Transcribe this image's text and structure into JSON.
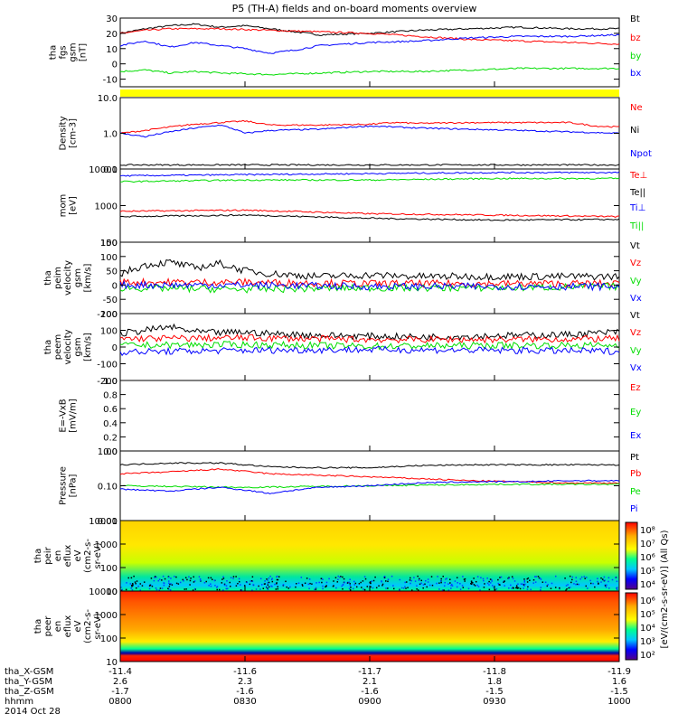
{
  "title": "P5 (TH-A) fields and on-board moments overview",
  "colors": {
    "black": "#000000",
    "red": "#ff0000",
    "green": "#00dd00",
    "blue": "#0000ff",
    "yellow": "#ffff00"
  },
  "chart_data": [
    {
      "id": "fgs",
      "type": "line",
      "ylabel": [
        "tha",
        "fgs",
        "gsm",
        "[nT]"
      ],
      "ylim": [
        -15,
        30
      ],
      "yticks": [
        "30",
        "20",
        "10",
        "0",
        "-10"
      ],
      "ytick_values": [
        30,
        20,
        10,
        0,
        -10
      ],
      "legend": [
        {
          "name": "Bt",
          "color": "#000000"
        },
        {
          "name": "bz",
          "color": "#ff0000"
        },
        {
          "name": "by",
          "color": "#00dd00"
        },
        {
          "name": "bx",
          "color": "#0000ff"
        }
      ],
      "series": [
        {
          "name": "Bt",
          "color": "#000000",
          "x": [
            0,
            0.05,
            0.1,
            0.15,
            0.2,
            0.25,
            0.3,
            0.35,
            0.4,
            0.5,
            0.6,
            0.7,
            0.8,
            0.9,
            1.0
          ],
          "y": [
            20,
            23,
            25,
            26,
            24,
            25,
            23,
            21,
            19,
            20,
            22,
            23,
            24,
            23,
            23
          ]
        },
        {
          "name": "bz",
          "color": "#ff0000",
          "x": [
            0,
            0.05,
            0.1,
            0.2,
            0.3,
            0.4,
            0.5,
            0.6,
            0.7,
            0.8,
            0.9,
            1.0
          ],
          "y": [
            20,
            22,
            23,
            23,
            22,
            21,
            20,
            18,
            16,
            15,
            14,
            13
          ]
        },
        {
          "name": "by",
          "color": "#00dd00",
          "x": [
            0,
            0.05,
            0.1,
            0.15,
            0.2,
            0.3,
            0.4,
            0.5,
            0.6,
            0.7,
            0.8,
            0.9,
            1.0
          ],
          "y": [
            -5,
            -4,
            -6,
            -5,
            -6,
            -7,
            -6,
            -5,
            -5,
            -4,
            -3,
            -3,
            -3
          ]
        },
        {
          "name": "bx",
          "color": "#0000ff",
          "x": [
            0,
            0.05,
            0.1,
            0.15,
            0.2,
            0.25,
            0.3,
            0.35,
            0.4,
            0.5,
            0.6,
            0.7,
            0.8,
            0.9,
            1.0
          ],
          "y": [
            12,
            15,
            11,
            14,
            12,
            10,
            7,
            9,
            12,
            14,
            15,
            17,
            18,
            18,
            19
          ]
        }
      ]
    },
    {
      "id": "density",
      "type": "line",
      "scale": "log",
      "ylabel": [
        "Density",
        "[cm-3]"
      ],
      "ylim": [
        0.1,
        10
      ],
      "yticks": [
        "10.0",
        "1.0",
        "0.1"
      ],
      "ytick_values": [
        10,
        1,
        0.1
      ],
      "legend": [
        {
          "name": "Ne",
          "color": "#ff0000"
        },
        {
          "name": "Ni",
          "color": "#000000"
        },
        {
          "name": "Npot",
          "color": "#0000ff"
        }
      ],
      "series": [
        {
          "name": "Ne",
          "color": "#ff0000",
          "x": [
            0,
            0.05,
            0.1,
            0.15,
            0.2,
            0.25,
            0.3,
            0.4,
            0.5,
            0.55,
            0.6,
            0.7,
            0.8,
            0.9,
            0.95,
            1.0
          ],
          "y": [
            1.0,
            1.2,
            1.5,
            1.8,
            2.0,
            2.2,
            1.7,
            1.7,
            1.8,
            2.0,
            1.9,
            2.0,
            2.0,
            2.0,
            1.6,
            1.5
          ]
        },
        {
          "name": "Ni",
          "color": "#000000",
          "x": [
            0,
            0.25,
            0.5,
            0.75,
            1.0
          ],
          "y": [
            0.13,
            0.13,
            0.13,
            0.13,
            0.13
          ]
        },
        {
          "name": "Npot",
          "color": "#0000ff",
          "x": [
            0,
            0.05,
            0.1,
            0.2,
            0.25,
            0.3,
            0.4,
            0.5,
            0.6,
            0.7,
            0.8,
            0.9,
            1.0
          ],
          "y": [
            1.0,
            0.8,
            1.1,
            1.7,
            1.0,
            1.2,
            1.3,
            1.6,
            1.4,
            1.3,
            1.2,
            1.1,
            1.0
          ]
        }
      ]
    },
    {
      "id": "temperature",
      "type": "line",
      "scale": "log",
      "ylabel": [
        "mom",
        "[eV]"
      ],
      "ylim": [
        100,
        10000
      ],
      "yticks": [
        "10000",
        "1000",
        "100"
      ],
      "ytick_values": [
        10000,
        1000,
        100
      ],
      "legend": [
        {
          "name": "Te⊥",
          "color": "#ff0000"
        },
        {
          "name": "Te||",
          "color": "#000000"
        },
        {
          "name": "Ti⊥",
          "color": "#0000ff"
        },
        {
          "name": "Ti||",
          "color": "#00dd00"
        }
      ],
      "series": [
        {
          "name": "Te⊥",
          "color": "#ff0000",
          "x": [
            0,
            0.25,
            0.5,
            0.75,
            1.0
          ],
          "y": [
            700,
            750,
            600,
            550,
            500
          ]
        },
        {
          "name": "Te||",
          "color": "#000000",
          "x": [
            0,
            0.25,
            0.5,
            0.75,
            1.0
          ],
          "y": [
            500,
            550,
            450,
            400,
            420
          ]
        },
        {
          "name": "Ti⊥",
          "color": "#0000ff",
          "x": [
            0,
            0.25,
            0.5,
            0.75,
            1.0
          ],
          "y": [
            6500,
            7000,
            7500,
            8000,
            8000
          ]
        },
        {
          "name": "Ti||",
          "color": "#00dd00",
          "x": [
            0,
            0.25,
            0.5,
            0.75,
            1.0
          ],
          "y": [
            4500,
            5000,
            5000,
            5500,
            5500
          ]
        }
      ]
    },
    {
      "id": "peim_velocity",
      "type": "line",
      "ylabel": [
        "tha",
        "peim",
        "velocity",
        "gsm",
        "[km/s]"
      ],
      "ylim": [
        -100,
        150
      ],
      "yticks": [
        "150",
        "100",
        "50",
        "0",
        "-50",
        "-100"
      ],
      "ytick_values": [
        150,
        100,
        50,
        0,
        -50,
        -100
      ],
      "legend": [
        {
          "name": "Vt",
          "color": "#000000"
        },
        {
          "name": "Vz",
          "color": "#ff0000"
        },
        {
          "name": "Vy",
          "color": "#00dd00"
        },
        {
          "name": "Vx",
          "color": "#0000ff"
        }
      ],
      "series": [
        {
          "name": "Vt",
          "color": "#000000",
          "x": [
            0,
            0.05,
            0.1,
            0.15,
            0.2,
            0.25,
            0.3,
            0.4,
            0.5,
            0.6,
            0.7,
            0.8,
            0.9,
            1.0
          ],
          "y": [
            40,
            70,
            80,
            60,
            75,
            50,
            40,
            30,
            35,
            30,
            30,
            30,
            30,
            30
          ]
        },
        {
          "name": "Vz",
          "color": "#ff0000",
          "x": [
            0,
            0.25,
            0.5,
            0.75,
            1.0
          ],
          "y": [
            10,
            10,
            5,
            5,
            5
          ]
        },
        {
          "name": "Vy",
          "color": "#00dd00",
          "x": [
            0,
            0.25,
            0.5,
            0.75,
            1.0
          ],
          "y": [
            -10,
            -15,
            -10,
            -10,
            -5
          ]
        },
        {
          "name": "Vx",
          "color": "#0000ff",
          "x": [
            0,
            0.25,
            0.5,
            0.75,
            1.0
          ],
          "y": [
            0,
            0,
            -5,
            -5,
            -5
          ]
        }
      ]
    },
    {
      "id": "peem_velocity",
      "type": "line",
      "ylabel": [
        "tha",
        "peem",
        "velocity",
        "gsm",
        "[km/s]"
      ],
      "ylim": [
        -200,
        200
      ],
      "yticks": [
        "200",
        "100",
        "0",
        "-100",
        "-200"
      ],
      "ytick_values": [
        200,
        100,
        0,
        -100,
        -200
      ],
      "legend": [
        {
          "name": "Vt",
          "color": "#000000"
        },
        {
          "name": "Vz",
          "color": "#ff0000"
        },
        {
          "name": "Vy",
          "color": "#00dd00"
        },
        {
          "name": "Vx",
          "color": "#0000ff"
        }
      ],
      "series": [
        {
          "name": "Vt",
          "color": "#000000",
          "x": [
            0,
            0.05,
            0.1,
            0.15,
            0.2,
            0.25,
            0.3,
            0.4,
            0.5,
            0.6,
            0.7,
            0.8,
            0.9,
            1.0
          ],
          "y": [
            80,
            100,
            120,
            90,
            85,
            90,
            80,
            70,
            65,
            60,
            65,
            70,
            75,
            90
          ]
        },
        {
          "name": "Vz",
          "color": "#ff0000",
          "x": [
            0,
            0.25,
            0.5,
            0.75,
            1.0
          ],
          "y": [
            50,
            55,
            45,
            45,
            50
          ]
        },
        {
          "name": "Vy",
          "color": "#00dd00",
          "x": [
            0,
            0.25,
            0.5,
            0.75,
            1.0
          ],
          "y": [
            10,
            15,
            5,
            10,
            10
          ]
        },
        {
          "name": "Vx",
          "color": "#0000ff",
          "x": [
            0,
            0.25,
            0.5,
            0.75,
            1.0
          ],
          "y": [
            -30,
            -20,
            -15,
            -20,
            -25
          ]
        }
      ]
    },
    {
      "id": "efield",
      "type": "line",
      "ylabel": [
        "E=-VxB",
        "[mV/m]"
      ],
      "ylim": [
        0,
        1
      ],
      "yticks": [
        "1.0",
        "0.8",
        "0.6",
        "0.4",
        "0.2",
        "0.0"
      ],
      "ytick_values": [
        1.0,
        0.8,
        0.6,
        0.4,
        0.2,
        0.0
      ],
      "legend": [
        {
          "name": "Ez",
          "color": "#ff0000"
        },
        {
          "name": "Ey",
          "color": "#00dd00"
        },
        {
          "name": "Ex",
          "color": "#0000ff"
        }
      ],
      "series": []
    },
    {
      "id": "pressure",
      "type": "line",
      "scale": "log",
      "ylabel": [
        "Pressure",
        "[nPa]"
      ],
      "ylim": [
        0.01,
        1
      ],
      "yticks": [
        "1.00",
        "0.10",
        "0.01"
      ],
      "ytick_values": [
        1,
        0.1,
        0.01
      ],
      "legend": [
        {
          "name": "Pt",
          "color": "#000000"
        },
        {
          "name": "Pb",
          "color": "#ff0000"
        },
        {
          "name": "Pe",
          "color": "#00dd00"
        },
        {
          "name": "Pi",
          "color": "#0000ff"
        }
      ],
      "series": [
        {
          "name": "Pt",
          "color": "#000000",
          "x": [
            0,
            0.1,
            0.2,
            0.3,
            0.4,
            0.5,
            0.6,
            0.7,
            0.8,
            0.9,
            1.0
          ],
          "y": [
            0.4,
            0.45,
            0.45,
            0.35,
            0.33,
            0.33,
            0.38,
            0.4,
            0.4,
            0.4,
            0.4
          ]
        },
        {
          "name": "Pb",
          "color": "#ff0000",
          "x": [
            0,
            0.1,
            0.2,
            0.3,
            0.4,
            0.5,
            0.6,
            0.7,
            0.8,
            0.9,
            1.0
          ],
          "y": [
            0.22,
            0.25,
            0.3,
            0.22,
            0.2,
            0.18,
            0.16,
            0.14,
            0.13,
            0.12,
            0.12
          ]
        },
        {
          "name": "Pe",
          "color": "#00dd00",
          "x": [
            0,
            0.25,
            0.5,
            0.75,
            1.0
          ],
          "y": [
            0.1,
            0.09,
            0.1,
            0.11,
            0.11
          ]
        },
        {
          "name": "Pi",
          "color": "#0000ff",
          "x": [
            0,
            0.1,
            0.2,
            0.3,
            0.4,
            0.5,
            0.6,
            0.7,
            0.8,
            0.9,
            1.0
          ],
          "y": [
            0.08,
            0.07,
            0.09,
            0.06,
            0.09,
            0.1,
            0.12,
            0.13,
            0.13,
            0.14,
            0.14
          ]
        }
      ]
    },
    {
      "id": "peir_spectrogram",
      "type": "heatmap",
      "ylabel": [
        "tha",
        "peir",
        "en",
        "eflux",
        "eV",
        "(cm2-s-",
        "sr-eV)"
      ],
      "ylim": [
        10,
        10000
      ],
      "yticks": [
        "10000",
        "1000",
        "100",
        "10"
      ],
      "ytick_values": [
        10000,
        1000,
        100,
        10
      ],
      "colorbar_ticks": [
        "10⁸",
        "10⁷",
        "10⁶",
        "10⁵",
        "10⁴"
      ]
    },
    {
      "id": "peer_spectrogram",
      "type": "heatmap",
      "ylabel": [
        "tha",
        "peer",
        "en",
        "eflux",
        "eV",
        "(cm2-s-",
        "sr-eV)"
      ],
      "ylim": [
        10,
        10000
      ],
      "yticks": [
        "10000",
        "1000",
        "100",
        "10"
      ],
      "ytick_values": [
        10000,
        1000,
        100,
        10
      ],
      "colorbar_ticks": [
        "10⁶",
        "10⁵",
        "10⁴",
        "10³",
        "10²"
      ]
    }
  ],
  "colorbar_label": "[eV/(cm2-s-sr-eV)] (All Qs)",
  "footer": {
    "row_labels": [
      "tha_X-GSM",
      "tha_Y-GSM",
      "tha_Z-GSM",
      "hhmm",
      "2014 Oct 28"
    ],
    "columns": [
      {
        "x": "-11.4",
        "y": "2.6",
        "z": "-1.7",
        "t": "0800"
      },
      {
        "x": "-11.6",
        "y": "2.3",
        "z": "-1.6",
        "t": "0830"
      },
      {
        "x": "-11.7",
        "y": "2.1",
        "z": "-1.6",
        "t": "0900"
      },
      {
        "x": "-11.8",
        "y": "1.8",
        "z": "-1.5",
        "t": "0930"
      },
      {
        "x": "-11.9",
        "y": "1.6",
        "z": "-1.5",
        "t": "1000"
      }
    ]
  }
}
